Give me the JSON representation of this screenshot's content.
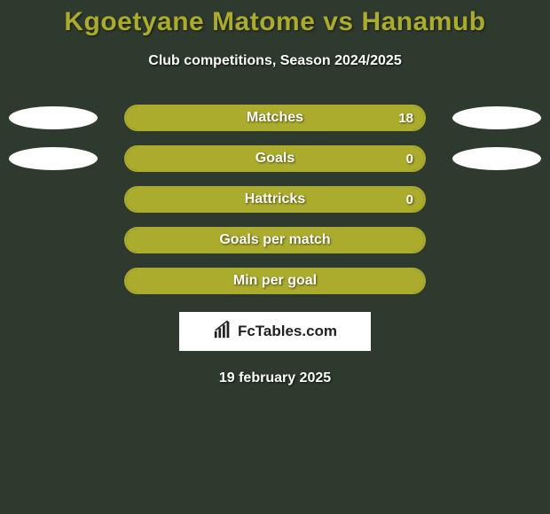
{
  "colors": {
    "background": "#2e3a2e",
    "accent": "#abab2d",
    "text": "#ffffff",
    "ellipse": "#ffffff",
    "branding_bg": "#ffffff",
    "branding_text": "#222222"
  },
  "typography": {
    "title_fontsize": 30,
    "subtitle_fontsize": 16,
    "stat_label_fontsize": 16,
    "stat_value_fontsize": 15,
    "date_fontsize": 16,
    "branding_fontsize": 17
  },
  "title": "Kgoetyane Matome vs Hanamub",
  "subtitle": "Club competitions, Season 2024/2025",
  "stats": [
    {
      "label": "Matches",
      "left_value": "",
      "right_value": "18",
      "left_fill_pct": 0,
      "right_fill_pct": 100,
      "show_left_ellipse": true,
      "show_right_ellipse": true
    },
    {
      "label": "Goals",
      "left_value": "",
      "right_value": "0",
      "left_fill_pct": 0,
      "right_fill_pct": 100,
      "show_left_ellipse": true,
      "show_right_ellipse": true
    },
    {
      "label": "Hattricks",
      "left_value": "",
      "right_value": "0",
      "left_fill_pct": 0,
      "right_fill_pct": 100,
      "show_left_ellipse": false,
      "show_right_ellipse": false
    },
    {
      "label": "Goals per match",
      "left_value": "",
      "right_value": "",
      "left_fill_pct": 0,
      "right_fill_pct": 100,
      "show_left_ellipse": false,
      "show_right_ellipse": false
    },
    {
      "label": "Min per goal",
      "left_value": "",
      "right_value": "",
      "left_fill_pct": 0,
      "right_fill_pct": 100,
      "show_left_ellipse": false,
      "show_right_ellipse": false
    }
  ],
  "branding": {
    "text": "FcTables.com",
    "icon": "chart-icon"
  },
  "date": "19 february 2025"
}
